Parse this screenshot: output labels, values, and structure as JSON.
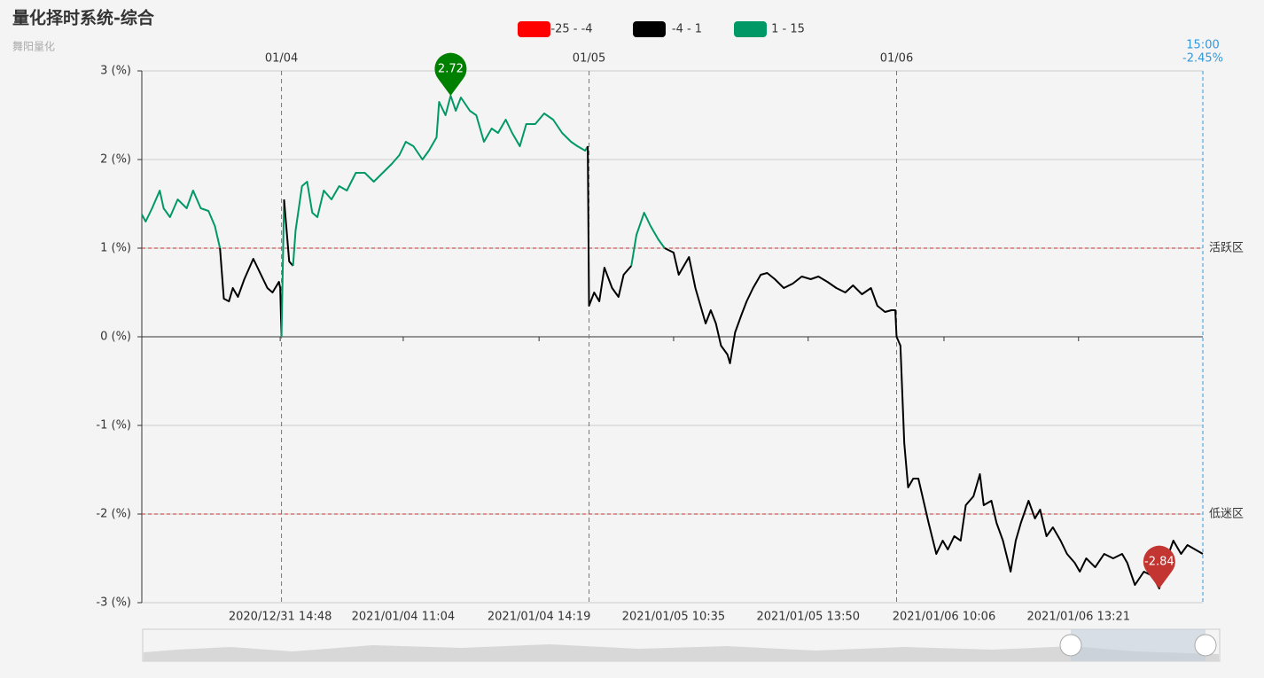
{
  "chart_data": {
    "type": "line",
    "title": "量化择时系统-综合",
    "subtitle": "舞阳量化",
    "x": [
      0,
      3,
      8,
      14,
      17,
      22,
      28,
      35,
      40,
      46,
      52,
      57,
      61,
      64,
      68,
      71,
      75,
      80,
      87,
      93,
      98,
      102,
      107,
      108,
      109,
      111,
      115,
      118,
      120,
      125,
      129,
      133,
      137,
      142,
      148,
      154,
      160,
      167,
      174,
      181,
      188,
      195,
      201,
      206,
      212,
      219,
      224,
      230,
      232,
      237,
      241,
      245,
      249,
      256,
      261,
      267,
      273,
      278,
      284,
      289,
      295,
      300,
      307,
      314,
      321,
      328,
      335,
      340,
      346,
      348,
      349,
      353,
      357,
      361,
      367,
      372,
      376,
      382,
      386,
      392,
      397,
      403,
      408,
      415,
      419,
      423,
      427,
      432,
      436,
      440,
      444,
      448,
      452,
      457,
      459,
      463,
      468,
      472,
      477,
      483,
      488,
      494,
      501,
      508,
      515,
      522,
      528,
      535,
      542,
      549,
      555,
      562,
      569,
      574,
      580,
      585,
      588,
      589,
      592,
      595,
      598,
      602,
      606,
      610,
      614,
      620,
      625,
      629,
      634,
      639,
      643,
      649,
      654,
      657,
      663,
      667,
      672,
      678,
      682,
      686,
      692,
      697,
      701,
      706,
      711,
      717,
      722,
      728,
      732,
      737,
      744,
      751,
      758,
      765,
      769,
      775,
      782,
      789,
      794,
      800,
      805,
      811,
      816,
      822,
      828
    ],
    "values": [
      1.38,
      1.3,
      1.45,
      1.65,
      1.45,
      1.35,
      1.55,
      1.45,
      1.65,
      1.45,
      1.42,
      1.25,
      1.0,
      0.43,
      0.4,
      0.55,
      0.45,
      0.65,
      0.88,
      0.7,
      0.55,
      0.5,
      0.62,
      0.55,
      0.0,
      1.55,
      0.85,
      0.8,
      1.2,
      1.7,
      1.75,
      1.4,
      1.35,
      1.65,
      1.55,
      1.7,
      1.65,
      1.85,
      1.85,
      1.75,
      1.85,
      1.95,
      2.05,
      2.2,
      2.15,
      2.0,
      2.1,
      2.25,
      2.65,
      2.5,
      2.72,
      2.55,
      2.7,
      2.55,
      2.5,
      2.2,
      2.35,
      2.3,
      2.45,
      2.3,
      2.15,
      2.4,
      2.4,
      2.52,
      2.45,
      2.3,
      2.2,
      2.15,
      2.1,
      2.15,
      0.35,
      0.5,
      0.4,
      0.78,
      0.55,
      0.45,
      0.7,
      0.8,
      1.15,
      1.4,
      1.25,
      1.1,
      1.0,
      0.95,
      0.7,
      0.8,
      0.9,
      0.55,
      0.35,
      0.15,
      0.3,
      0.15,
      -0.1,
      -0.2,
      -0.3,
      0.05,
      0.25,
      0.4,
      0.55,
      0.7,
      0.72,
      0.65,
      0.55,
      0.6,
      0.68,
      0.65,
      0.68,
      0.62,
      0.55,
      0.5,
      0.58,
      0.48,
      0.55,
      0.35,
      0.28,
      0.3,
      0.3,
      0.0,
      -0.1,
      -1.2,
      -1.7,
      -1.6,
      -1.6,
      -1.85,
      -2.1,
      -2.45,
      -2.3,
      -2.4,
      -2.25,
      -2.3,
      -1.9,
      -1.8,
      -1.55,
      -1.9,
      -1.85,
      -2.1,
      -2.3,
      -2.65,
      -2.3,
      -2.1,
      -1.85,
      -2.05,
      -1.95,
      -2.25,
      -2.15,
      -2.3,
      -2.45,
      -2.55,
      -2.65,
      -2.5,
      -2.6,
      -2.45,
      -2.5,
      -2.45,
      -2.55,
      -2.8,
      -2.65,
      -2.7,
      -2.84,
      -2.5,
      -2.3,
      -2.45,
      -2.35,
      -2.4,
      -2.45
    ],
    "xlim": [
      0,
      828
    ],
    "xticks": [
      {
        "value": 108,
        "label": "2020/12/31 14:48"
      },
      {
        "value": 204,
        "label": "2021/01/04 11:04"
      },
      {
        "value": 310,
        "label": "2021/01/04 14:19"
      },
      {
        "value": 415,
        "label": "2021/01/05 10:35"
      },
      {
        "value": 520,
        "label": "2021/01/05 13:50"
      },
      {
        "value": 626,
        "label": "2021/01/06 10:06"
      },
      {
        "value": 731,
        "label": "2021/01/06 13:21"
      }
    ],
    "day_markers": [
      {
        "value": 109,
        "label": "01/04"
      },
      {
        "value": 349,
        "label": "01/05"
      },
      {
        "value": 589,
        "label": "01/06"
      }
    ],
    "ylim": [
      -3,
      3
    ],
    "yticks": [
      {
        "value": -3,
        "label": "-3 (%)"
      },
      {
        "value": -2,
        "label": "-2 (%)"
      },
      {
        "value": -1,
        "label": "-1 (%)"
      },
      {
        "value": 0,
        "label": "0 (%)"
      },
      {
        "value": 1,
        "label": "1 (%)"
      },
      {
        "value": 2,
        "label": "2 (%)"
      },
      {
        "value": 3,
        "label": "3 (%)"
      }
    ],
    "grid": true,
    "visual_map": [
      {
        "min": -25,
        "max": -4,
        "color": "#ff0000",
        "label": "-25 - -4"
      },
      {
        "min": -4,
        "max": 1,
        "color": "#000000",
        "label": "-4 - 1"
      },
      {
        "min": 1,
        "max": 15,
        "color": "#009966",
        "label": "1 - 15"
      }
    ],
    "mark_lines": [
      {
        "value": 1,
        "label": "活跃区"
      },
      {
        "value": -2,
        "label": "低迷区"
      }
    ],
    "mark_line_color": "#c23531",
    "mark_points": [
      {
        "x": 241,
        "value": 2.72,
        "color": "#008000"
      },
      {
        "x": 794,
        "value": -2.84,
        "color": "#c23531"
      }
    ],
    "pointer": {
      "x": 828,
      "time_label": "15:00",
      "value": {
        "value": -2.45,
        "label": "-2.45%"
      },
      "color": "#3398db"
    }
  }
}
